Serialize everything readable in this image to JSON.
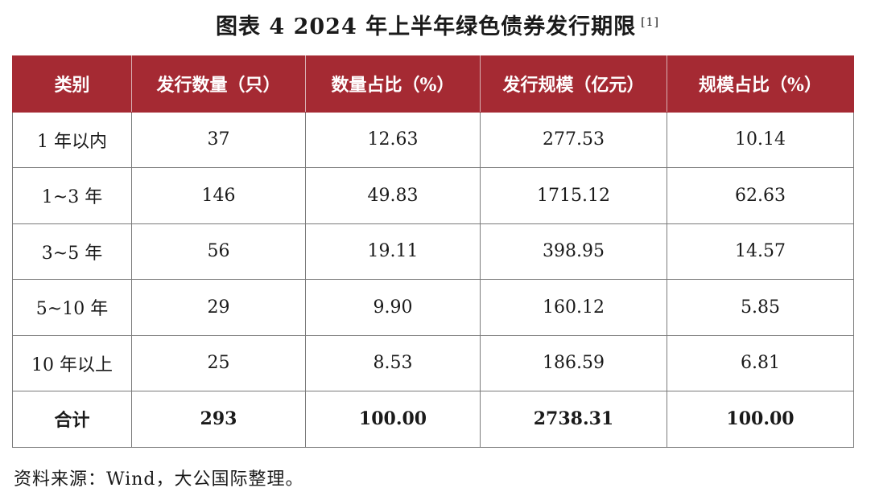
{
  "title": "图表 4  2024 年上半年绿色债券发行期限",
  "title_ref": "[1]",
  "table": {
    "headers": [
      "类别",
      "发行数量（只）",
      "数量占比（%）",
      "发行规模（亿元）",
      "规模占比（%）"
    ],
    "rows": [
      [
        "1 年以内",
        "37",
        "12.63",
        "277.53",
        "10.14"
      ],
      [
        "1~3 年",
        "146",
        "49.83",
        "1715.12",
        "62.63"
      ],
      [
        "3~5 年",
        "56",
        "19.11",
        "398.95",
        "14.57"
      ],
      [
        "5~10 年",
        "29",
        "9.90",
        "160.12",
        "5.85"
      ],
      [
        "10 年以上",
        "25",
        "8.53",
        "186.59",
        "6.81"
      ]
    ],
    "total": [
      "合计",
      "293",
      "100.00",
      "2738.31",
      "100.00"
    ]
  },
  "source": "资料来源：Wind，大公国际整理。",
  "colors": {
    "header_bg": "#a52a33",
    "header_text": "#ffffff"
  }
}
